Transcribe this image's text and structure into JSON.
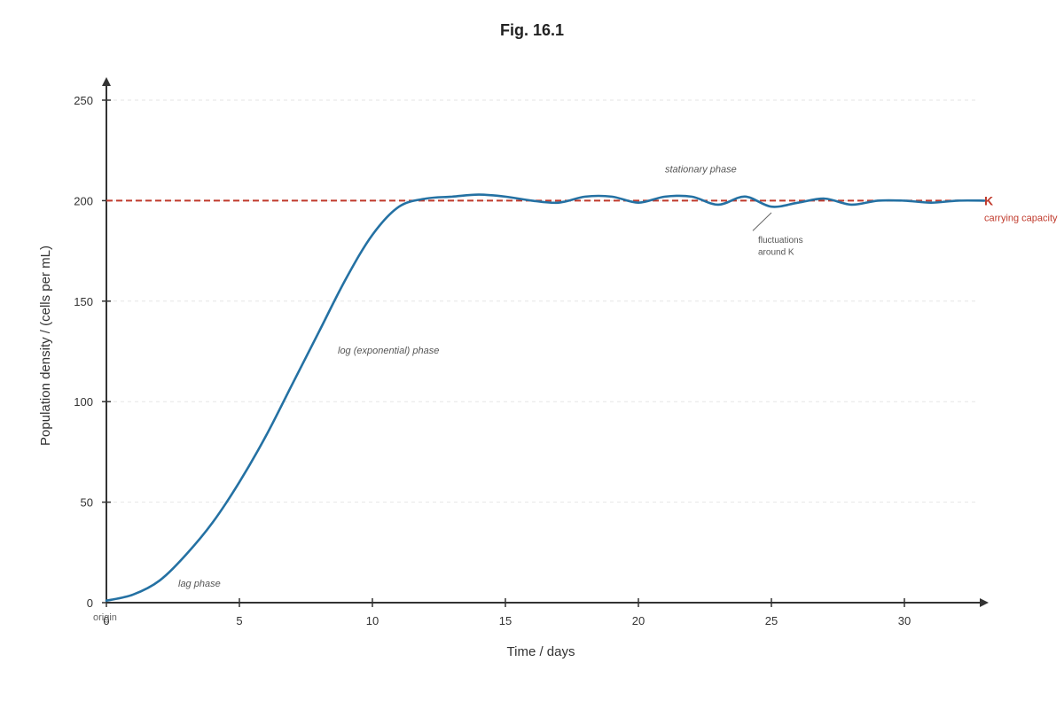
{
  "chart_data": {
    "type": "line",
    "title": "Fig. 16.1",
    "xlabel": "Time / days",
    "ylabel": "Population density / (cells per mL)",
    "xlim": [
      0,
      33
    ],
    "ylim": [
      0,
      250
    ],
    "x_ticks": [
      0,
      5,
      10,
      15,
      20,
      25,
      30
    ],
    "y_ticks": [
      0,
      50,
      100,
      150,
      200,
      250
    ],
    "x_tick_labels": [
      "0",
      "5",
      "10",
      "15",
      "20",
      "25",
      "30"
    ],
    "y_tick_labels": [
      "0",
      "50",
      "100",
      "150",
      "200",
      "250"
    ],
    "grid": true,
    "origin_label": "origin",
    "series": [
      {
        "color": "#2471a3",
        "x": [
          0,
          1,
          2,
          3,
          4,
          5,
          6,
          7,
          8,
          9,
          10,
          11,
          12,
          13,
          14,
          15,
          16,
          17,
          18,
          19,
          20,
          21,
          22,
          23,
          24,
          25,
          26,
          27,
          28,
          29,
          30,
          31,
          32,
          33
        ],
        "y": [
          1,
          4,
          11,
          24,
          40,
          60,
          83,
          109,
          135,
          161,
          183,
          197,
          201,
          202,
          203,
          202,
          200,
          199,
          202,
          202,
          199,
          202,
          202,
          198,
          202,
          197,
          199,
          201,
          198,
          200,
          200,
          199,
          200,
          200
        ]
      }
    ],
    "reference_lines": [
      {
        "axis": "y",
        "value": 200,
        "label": "K",
        "sublabel": "carrying capacity",
        "color": "#c0392b",
        "style": "dashed"
      }
    ],
    "annotations": [
      {
        "text": "lag phase",
        "x": 2.7,
        "y": 8
      },
      {
        "text": "log (exponential) phase",
        "x": 8.7,
        "y": 124
      },
      {
        "text": "stationary phase",
        "x": 21,
        "y": 214
      },
      {
        "text": "fluctuations",
        "x": 24.5,
        "y": 179
      },
      {
        "text": "around K",
        "x": 24.5,
        "y": 173
      }
    ],
    "pointer": {
      "from": [
        24.3,
        185
      ],
      "to": [
        25,
        194
      ]
    }
  }
}
